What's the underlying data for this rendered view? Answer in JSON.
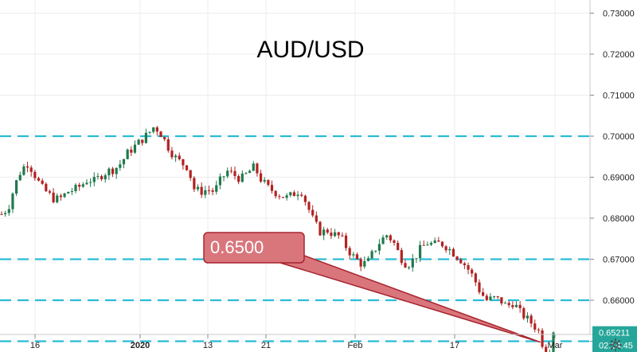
{
  "chart_data": {
    "type": "candlestick",
    "title": "AUD/USD",
    "ylim": [
      0.6425,
      0.734
    ],
    "y_ticks": [
      {
        "value": 0.73,
        "label": "0.73000"
      },
      {
        "value": 0.72,
        "label": "0.72000"
      },
      {
        "value": 0.71,
        "label": "0.71000"
      },
      {
        "value": 0.7,
        "label": "0.70000"
      },
      {
        "value": 0.69,
        "label": "0.69000"
      },
      {
        "value": 0.68,
        "label": "0.68000"
      },
      {
        "value": 0.67,
        "label": "0.67000"
      },
      {
        "value": 0.66,
        "label": "0.66000"
      },
      {
        "value": 0.65,
        "label": "0.65000"
      }
    ],
    "x_ticks": [
      {
        "label": "16",
        "bold": false
      },
      {
        "label": "2020",
        "bold": true
      },
      {
        "label": "13",
        "bold": false
      },
      {
        "label": "21",
        "bold": false
      },
      {
        "label": "Feb",
        "bold": false
      },
      {
        "label": "17",
        "bold": false
      },
      {
        "label": "Mar",
        "bold": false
      }
    ],
    "horizontal_levels": [
      0.7,
      0.67,
      0.66,
      0.65
    ],
    "callout": {
      "label": "0.6500",
      "level": 0.65
    },
    "last_price": {
      "label": "0.65211",
      "value": 0.65211
    },
    "countdown": {
      "label": "02:14:45"
    },
    "colors": {
      "up": "#1f7a4c",
      "down": "#b22222",
      "level_line": "#2bbcd4",
      "callout_fill": "#d9767c",
      "callout_edge": "#a8242e",
      "last_price_bg": "#26a69a"
    },
    "price_path": [
      0.681,
      0.6825,
      0.688,
      0.692,
      0.6935,
      0.6905,
      0.6875,
      0.686,
      0.6845,
      0.685,
      0.6865,
      0.687,
      0.688,
      0.6895,
      0.689,
      0.6905,
      0.6915,
      0.692,
      0.6935,
      0.696,
      0.6975,
      0.699,
      0.7005,
      0.7025,
      0.7005,
      0.6975,
      0.695,
      0.6935,
      0.6925,
      0.687,
      0.6865,
      0.687,
      0.6865,
      0.6895,
      0.6915,
      0.6905,
      0.6895,
      0.691,
      0.6925,
      0.6895,
      0.6875,
      0.6865,
      0.6855,
      0.685,
      0.686,
      0.687,
      0.683,
      0.679,
      0.6765,
      0.677,
      0.676,
      0.6755,
      0.6725,
      0.6705,
      0.669,
      0.669,
      0.672,
      0.6745,
      0.676,
      0.674,
      0.6705,
      0.6685,
      0.67,
      0.6725,
      0.674,
      0.6735,
      0.674,
      0.673,
      0.6715,
      0.67,
      0.668,
      0.6655,
      0.662,
      0.66,
      0.6605,
      0.66,
      0.6585,
      0.6595,
      0.657,
      0.6555,
      0.654,
      0.652,
      0.6445,
      0.6521
    ]
  }
}
